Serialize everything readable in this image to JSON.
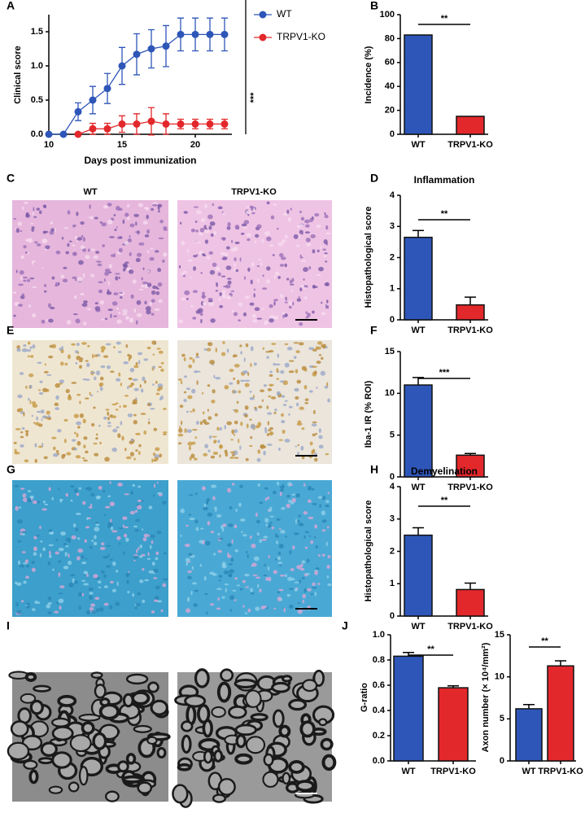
{
  "chart_data": [
    {
      "type": "line",
      "label": "A",
      "xlabel": "Days post immunization",
      "ylabel": "Clinical score",
      "x": [
        10,
        11,
        12,
        13,
        14,
        15,
        16,
        17,
        18,
        19,
        20,
        21,
        22
      ],
      "series": [
        {
          "name": "WT",
          "color": "#2e56b8",
          "values": [
            0,
            0,
            0.33,
            0.5,
            0.67,
            1.0,
            1.17,
            1.25,
            1.29,
            1.46,
            1.46,
            1.46,
            1.46
          ],
          "errors": [
            0,
            0,
            0.13,
            0.2,
            0.22,
            0.27,
            0.3,
            0.28,
            0.3,
            0.24,
            0.24,
            0.24,
            0.24
          ]
        },
        {
          "name": "TRPV1-KO",
          "color": "#e2282b",
          "values": [
            null,
            null,
            0,
            0.08,
            0.08,
            0.15,
            0.15,
            0.19,
            0.15,
            0.15,
            0.15,
            0.15,
            0.15
          ],
          "errors": [
            null,
            null,
            0,
            0.08,
            0.08,
            0.12,
            0.15,
            0.2,
            0.15,
            0.07,
            0.07,
            0.07,
            0.07
          ]
        }
      ],
      "xlim": [
        10,
        22.5
      ],
      "xticks": [
        10,
        15,
        20
      ],
      "ylim": [
        0,
        1.75
      ],
      "yticks": [
        {
          "value": 0,
          "label": "0.0"
        },
        {
          "value": 0.5,
          "label": "0.5"
        },
        {
          "value": 1,
          "label": "1.0"
        },
        {
          "value": 1.5,
          "label": "1.5"
        }
      ],
      "annotation": "***"
    },
    {
      "type": "bar",
      "label": "B",
      "ylabel": "Incidence (%)",
      "categories": [
        "WT",
        "TRPV1-KO"
      ],
      "values": [
        83,
        15
      ],
      "colors": [
        "#2e56b8",
        "#e2282b"
      ],
      "ylim": [
        0,
        100
      ],
      "yticks": [
        0,
        20,
        40,
        60,
        80,
        100
      ],
      "annotation": "**"
    },
    {
      "type": "bar",
      "label": "D",
      "title": "Inflammation",
      "ylabel": "Histopathological score",
      "categories": [
        "WT",
        "TRPV1-KO"
      ],
      "values": [
        2.65,
        0.48
      ],
      "errors": [
        0.22,
        0.25
      ],
      "colors": [
        "#2e56b8",
        "#e2282b"
      ],
      "ylim": [
        0,
        4
      ],
      "yticks": [
        0,
        1,
        2,
        3,
        4
      ],
      "annotation": "**"
    },
    {
      "type": "bar",
      "label": "F",
      "ylabel": "Iba-1 IR (% ROI)",
      "categories": [
        "WT",
        "TRPV1-KO"
      ],
      "values": [
        11.0,
        2.6
      ],
      "errors": [
        0.9,
        0.2
      ],
      "colors": [
        "#2e56b8",
        "#e2282b"
      ],
      "ylim": [
        0,
        15
      ],
      "yticks": [
        0,
        5,
        10,
        15
      ],
      "annotation": "***"
    },
    {
      "type": "bar",
      "label": "H",
      "title": "Demyelination",
      "ylabel": "Histopathological score",
      "categories": [
        "WT",
        "TRPV1-KO"
      ],
      "values": [
        2.5,
        0.82
      ],
      "errors": [
        0.23,
        0.2
      ],
      "colors": [
        "#2e56b8",
        "#e2282b"
      ],
      "ylim": [
        0,
        4
      ],
      "yticks": [
        0,
        1,
        2,
        3,
        4
      ],
      "annotation": "**"
    },
    {
      "type": "bar",
      "label": "J",
      "ylabel": "G-ratio",
      "categories": [
        "WT",
        "TRPV1-KO"
      ],
      "values": [
        0.83,
        0.58
      ],
      "errors": [
        0.03,
        0.015
      ],
      "colors": [
        "#2e56b8",
        "#e2282b"
      ],
      "ylim": [
        0,
        1
      ],
      "yticks": [
        {
          "value": 0,
          "label": "0.0"
        },
        {
          "value": 0.2,
          "label": "0.2"
        },
        {
          "value": 0.4,
          "label": "0.4"
        },
        {
          "value": 0.6,
          "label": "0.6"
        },
        {
          "value": 0.8,
          "label": "0.8"
        },
        {
          "value": 1,
          "label": "1.0"
        }
      ],
      "annotation": "**"
    },
    {
      "type": "bar",
      "ylabel": "Axon number (× 10⁴/mm²)",
      "categories": [
        "WT",
        "TRPV1-KO"
      ],
      "values": [
        6.2,
        11.3
      ],
      "errors": [
        0.5,
        0.6
      ],
      "colors": [
        "#2e56b8",
        "#e2282b"
      ],
      "ylim": [
        0,
        15
      ],
      "yticks": [
        0,
        5,
        10,
        15
      ],
      "annotation": "**"
    }
  ],
  "image_panels": [
    {
      "label": "C",
      "captions": [
        "WT",
        "TRPV1-KO"
      ]
    },
    {
      "label": "E"
    },
    {
      "label": "G"
    },
    {
      "label": "I"
    }
  ]
}
